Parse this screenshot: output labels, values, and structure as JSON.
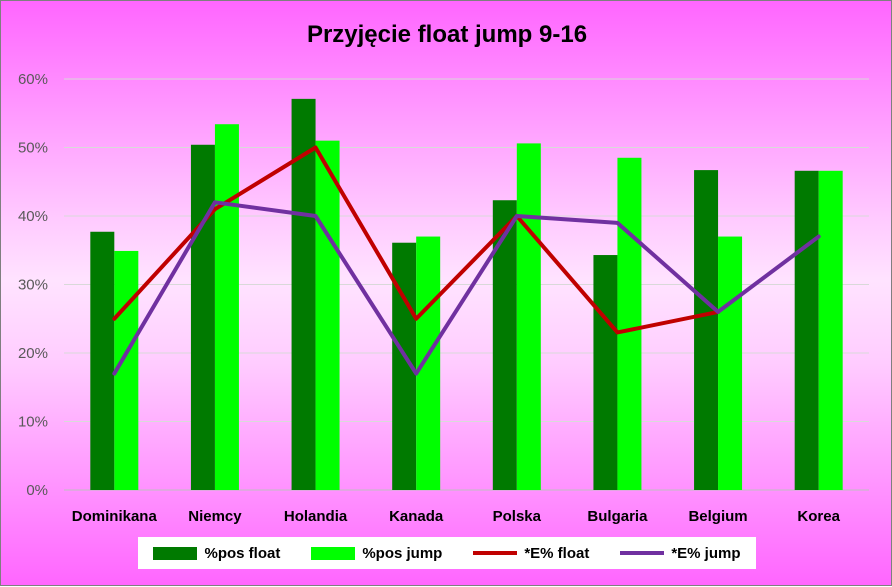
{
  "chart_data": {
    "type": "bar",
    "title": "Przyjęcie float jump 9-16",
    "categories": [
      "Dominikana",
      "Niemcy",
      "Holandia",
      "Kanada",
      "Polska",
      "Bulgaria",
      "Belgium",
      "Korea"
    ],
    "ylim": [
      0,
      0.6
    ],
    "yticks": [
      "0%",
      "10%",
      "20%",
      "30%",
      "40%",
      "50%",
      "60%"
    ],
    "grid": true,
    "legend_position": "bottom",
    "series": [
      {
        "name": "%pos float",
        "kind": "bar",
        "color": "#007a00",
        "values": [
          0.377,
          0.504,
          0.571,
          0.361,
          0.423,
          0.343,
          0.467,
          0.466
        ]
      },
      {
        "name": "%pos jump",
        "kind": "bar",
        "color": "#00ff00",
        "values": [
          0.349,
          0.534,
          0.51,
          0.37,
          0.506,
          0.485,
          0.37,
          0.466
        ]
      },
      {
        "name": "*E% float",
        "kind": "line",
        "color": "#c00000",
        "values": [
          0.25,
          0.41,
          0.5,
          0.25,
          0.4,
          0.23,
          0.26,
          null
        ]
      },
      {
        "name": "*E% jump",
        "kind": "line",
        "color": "#7030a0",
        "values": [
          0.17,
          0.42,
          0.4,
          0.17,
          0.4,
          0.39,
          0.26,
          0.37
        ]
      }
    ]
  }
}
